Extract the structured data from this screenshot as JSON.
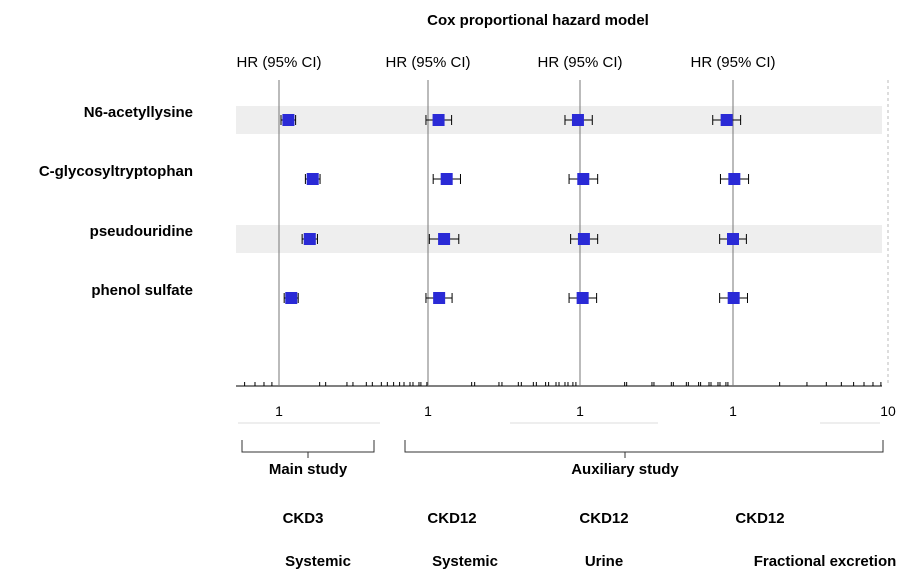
{
  "chart_data": {
    "type": "forest",
    "title": "Cox proportional hazard model",
    "column_header": "HR (95% CI)",
    "x_scale": "log",
    "row_labels": [
      "N6-acetyllysine",
      "C-glycosyltryptophan",
      "pseudouridine",
      "phenol sulfate"
    ],
    "panels": [
      {
        "group": "Main study",
        "cohort": "CKD3",
        "measure": "Systemic",
        "tick_labels": [
          "1"
        ],
        "estimates": [
          {
            "label": "N6-acetyllysine",
            "hr": 1.15,
            "lower": 1.03,
            "upper": 1.28
          },
          {
            "label": "C-glycosyltryptophan",
            "hr": 1.65,
            "lower": 1.48,
            "upper": 1.84
          },
          {
            "label": "pseudouridine",
            "hr": 1.58,
            "lower": 1.41,
            "upper": 1.77
          },
          {
            "label": "phenol sulfate",
            "hr": 1.2,
            "lower": 1.08,
            "upper": 1.33
          }
        ]
      },
      {
        "group": "Auxiliary study",
        "cohort": "CKD12",
        "measure": "Systemic",
        "tick_labels": [
          "1"
        ],
        "estimates": [
          {
            "label": "N6-acetyllysine",
            "hr": 1.17,
            "lower": 0.97,
            "upper": 1.42
          },
          {
            "label": "C-glycosyltryptophan",
            "hr": 1.32,
            "lower": 1.08,
            "upper": 1.62
          },
          {
            "label": "pseudouridine",
            "hr": 1.27,
            "lower": 1.02,
            "upper": 1.58
          },
          {
            "label": "phenol sulfate",
            "hr": 1.18,
            "lower": 0.97,
            "upper": 1.43
          }
        ]
      },
      {
        "group": "Auxiliary study",
        "cohort": "CKD12",
        "measure": "Urine",
        "tick_labels": [
          "1"
        ],
        "estimates": [
          {
            "label": "N6-acetyllysine",
            "hr": 0.97,
            "lower": 0.8,
            "upper": 1.2
          },
          {
            "label": "C-glycosyltryptophan",
            "hr": 1.05,
            "lower": 0.85,
            "upper": 1.3
          },
          {
            "label": "pseudouridine",
            "hr": 1.06,
            "lower": 0.87,
            "upper": 1.3
          },
          {
            "label": "phenol sulfate",
            "hr": 1.04,
            "lower": 0.85,
            "upper": 1.28
          }
        ]
      },
      {
        "group": "Auxiliary study",
        "cohort": "CKD12",
        "measure": "Fractional excretion",
        "tick_labels": [
          "1",
          "10"
        ],
        "estimates": [
          {
            "label": "N6-acetyllysine",
            "hr": 0.91,
            "lower": 0.74,
            "upper": 1.12
          },
          {
            "label": "C-glycosyltryptophan",
            "hr": 1.02,
            "lower": 0.83,
            "upper": 1.26
          },
          {
            "label": "pseudouridine",
            "hr": 1.0,
            "lower": 0.82,
            "upper": 1.22
          },
          {
            "label": "phenol sulfate",
            "hr": 1.01,
            "lower": 0.82,
            "upper": 1.24
          }
        ]
      }
    ],
    "groups": [
      "Main study",
      "Auxiliary study"
    ],
    "colors": {
      "marker": "#2a2ad6",
      "band": "#eeeeee",
      "refline": "#777777"
    }
  }
}
